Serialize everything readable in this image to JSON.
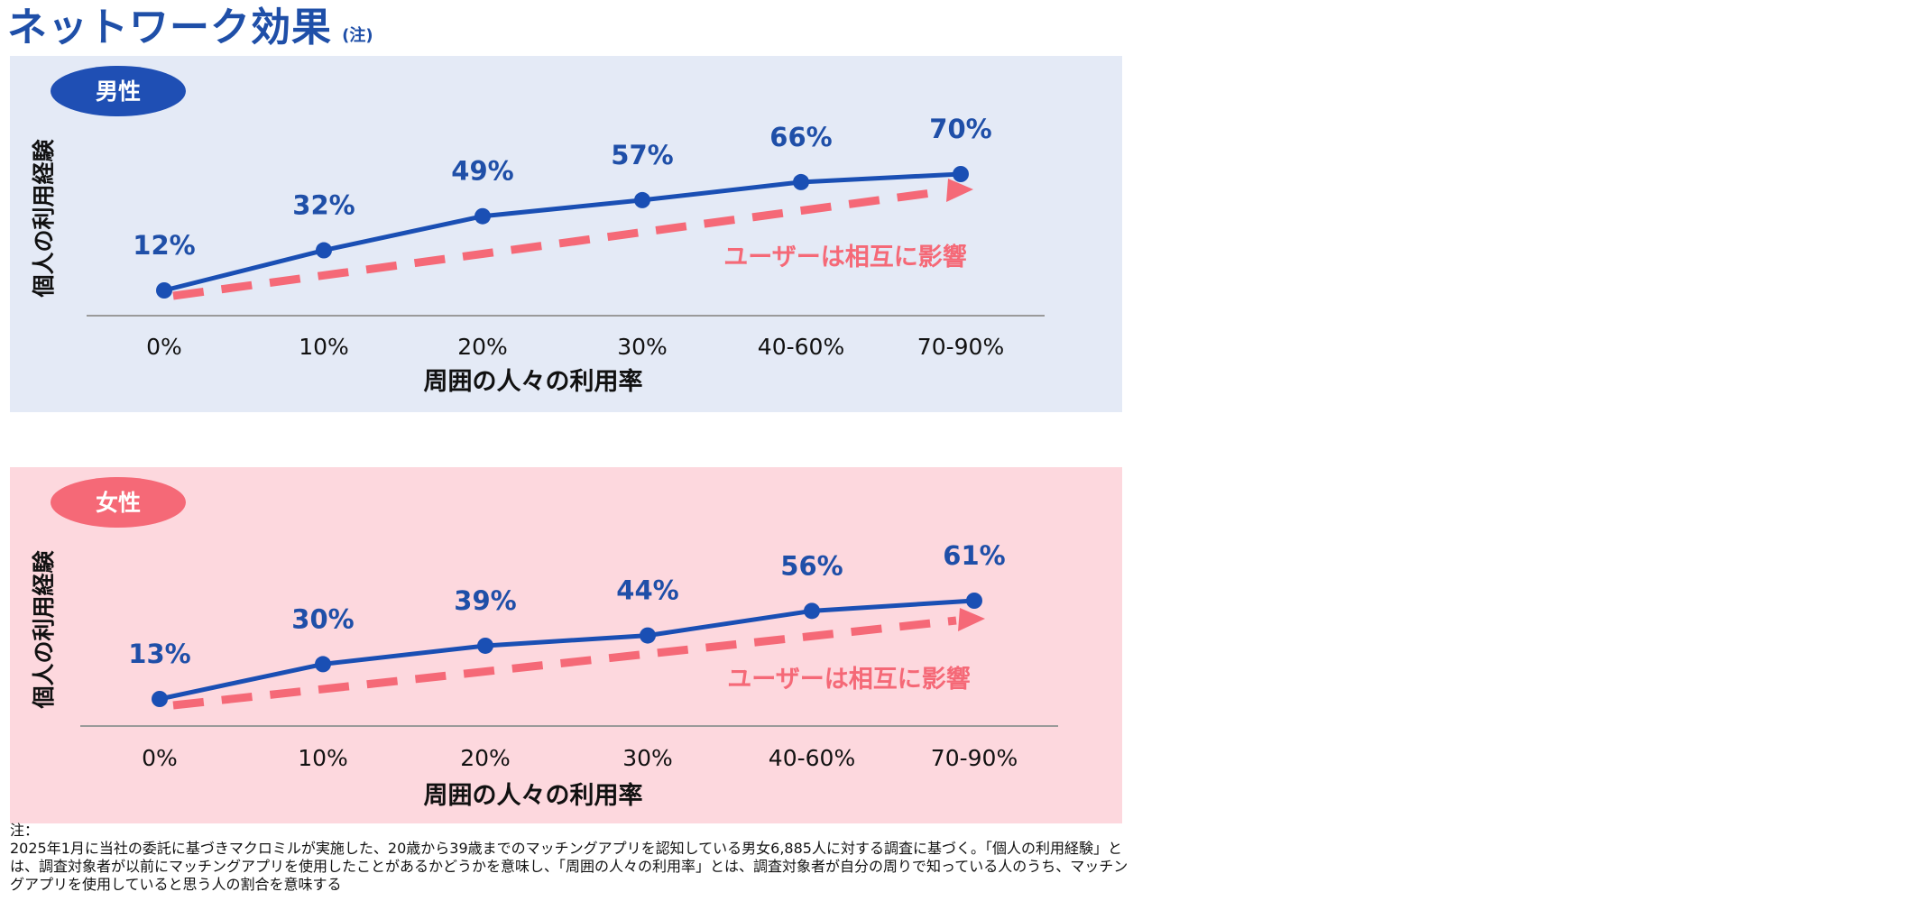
{
  "header": {
    "title": "ネットワーク効果",
    "note_marker": "(注)"
  },
  "colors": {
    "accent_blue": "#1f4fa8",
    "line_blue": "#1a4fb4",
    "dash_pink": "#f56977",
    "male_bg": "#e4eaf6",
    "female_bg": "#fdd8de",
    "male_badge": "#1f4fb4",
    "female_badge": "#f56977",
    "axis_gray": "#9a9a9a"
  },
  "chart_data": [
    {
      "type": "line",
      "panel": "male",
      "badge": "男性",
      "categories": [
        "0%",
        "10%",
        "20%",
        "30%",
        "40-60%",
        "70-90%"
      ],
      "series": [
        {
          "values": [
            12,
            32,
            49,
            57,
            66,
            70
          ]
        }
      ],
      "data_labels": [
        "12%",
        "32%",
        "49%",
        "57%",
        "66%",
        "70%"
      ],
      "xlabel": "周囲の人々の利用率",
      "ylabel": "個人の利用経験",
      "annotation": "ユーザーは相互に影響",
      "ylim": [
        0,
        80
      ],
      "grid": false
    },
    {
      "type": "line",
      "panel": "female",
      "badge": "女性",
      "categories": [
        "0%",
        "10%",
        "20%",
        "30%",
        "40-60%",
        "70-90%"
      ],
      "series": [
        {
          "values": [
            13,
            30,
            39,
            44,
            56,
            61
          ]
        }
      ],
      "data_labels": [
        "13%",
        "30%",
        "39%",
        "44%",
        "56%",
        "61%"
      ],
      "xlabel": "周囲の人々の利用率",
      "ylabel": "個人の利用経験",
      "annotation": "ユーザーは相互に影響",
      "ylim": [
        0,
        80
      ],
      "grid": false
    }
  ],
  "footnote": {
    "label": "注：",
    "text": "2025年1月に当社の委託に基づきマクロミルが実施した、20歳から39歳までのマッチングアプリを認知している男女6,885人に対する調査に基づく。「個人の利用経験」とは、調査対象者が以前にマッチングアプリを使用したことがあるかどうかを意味し、「周囲の人々の利用率」とは、調査対象者が自分の周りで知っている人のうち、マッチングアプリを使用していると思う人の割合を意味する"
  }
}
